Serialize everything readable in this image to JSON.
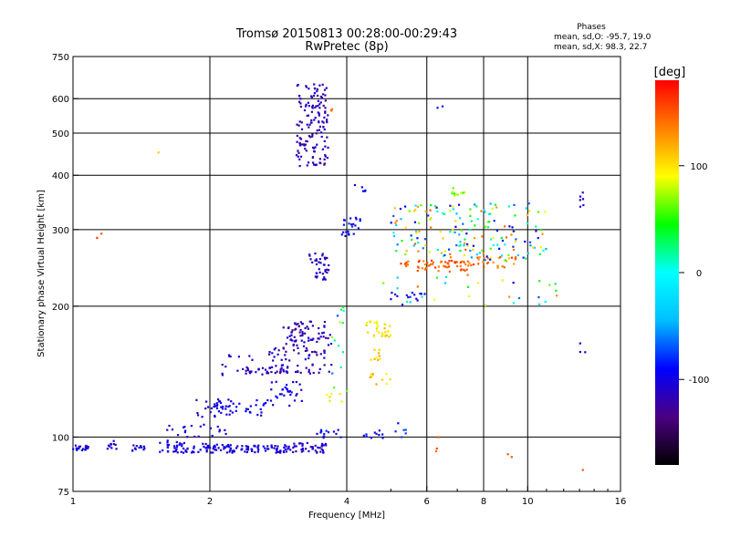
{
  "chart_data": {
    "type": "scatter",
    "title": "Tromsø 20150813 00:28:00-00:29:43",
    "subtitle": "RwPretec (8p)",
    "xlabel": "Frequency [MHz]",
    "ylabel": "Stationary phase Virtual Height [km]",
    "x_scale": "log",
    "y_scale": "log",
    "xlim": [
      1,
      16
    ],
    "ylim": [
      75,
      750
    ],
    "x_ticks": [
      1,
      2,
      4,
      6,
      8,
      10,
      16
    ],
    "y_ticks": [
      75,
      100,
      200,
      300,
      400,
      500,
      600,
      750
    ],
    "x_gridlines": [
      2,
      4,
      6,
      8,
      10
    ],
    "y_gridlines": [
      100,
      200,
      300,
      400,
      500,
      600
    ],
    "grid": true,
    "phases": {
      "header": "Phases",
      "line_o": "mean, sd,O:  -95.7, 19.0",
      "line_x": "mean, sd,X:  98.3, 22.7"
    },
    "colorbar": {
      "label": "[deg]",
      "range": [
        -180,
        180
      ],
      "ticks": [
        100,
        0,
        -100
      ],
      "colors": [
        "#000000",
        "#4b0082",
        "#0000ff",
        "#00bfff",
        "#00ffff",
        "#00ff00",
        "#ffff00",
        "#ff8000",
        "#ff0000"
      ]
    },
    "clusters": [
      {
        "x": [
          1.0,
          1.08
        ],
        "y": [
          93,
          96
        ],
        "n": 22,
        "phase": [
          -110,
          -95
        ]
      },
      {
        "x": [
          1.15,
          1.25
        ],
        "y": [
          93,
          98
        ],
        "n": 10,
        "phase": [
          -115,
          -95
        ]
      },
      {
        "x": [
          1.35,
          1.45
        ],
        "y": [
          92,
          96
        ],
        "n": 12,
        "phase": [
          -115,
          -95
        ]
      },
      {
        "x": [
          1.55,
          2.2
        ],
        "y": [
          92,
          97
        ],
        "n": 70,
        "phase": [
          -115,
          -90
        ]
      },
      {
        "x": [
          2.2,
          3.0
        ],
        "y": [
          92,
          96
        ],
        "n": 70,
        "phase": [
          -115,
          -90
        ]
      },
      {
        "x": [
          3.0,
          3.6
        ],
        "y": [
          92,
          97
        ],
        "n": 40,
        "phase": [
          -130,
          -95
        ]
      },
      {
        "x": [
          1.55,
          1.85
        ],
        "y": [
          97,
          108
        ],
        "n": 14,
        "phase": [
          -115,
          -95
        ]
      },
      {
        "x": [
          1.85,
          2.2
        ],
        "y": [
          100,
          125
        ],
        "n": 28,
        "phase": [
          -115,
          -95
        ]
      },
      {
        "x": [
          2.05,
          2.7
        ],
        "y": [
          112,
          122
        ],
        "n": 40,
        "phase": [
          -110,
          -90
        ]
      },
      {
        "x": [
          2.7,
          3.2
        ],
        "y": [
          118,
          135
        ],
        "n": 30,
        "phase": [
          -110,
          -90
        ]
      },
      {
        "x": [
          2.4,
          3.0
        ],
        "y": [
          139,
          145
        ],
        "n": 35,
        "phase": [
          -130,
          -100
        ]
      },
      {
        "x": [
          2.1,
          2.5
        ],
        "y": [
          138,
          155
        ],
        "n": 15,
        "phase": [
          -120,
          -95
        ]
      },
      {
        "x": [
          2.7,
          3.0
        ],
        "y": [
          145,
          165
        ],
        "n": 20,
        "phase": [
          -130,
          -100
        ]
      },
      {
        "x": [
          3.0,
          3.7
        ],
        "y": [
          140,
          185
        ],
        "n": 80,
        "phase": [
          -135,
          -100
        ]
      },
      {
        "x": [
          2.9,
          3.4
        ],
        "y": [
          160,
          185
        ],
        "n": 25,
        "phase": [
          -130,
          -100
        ]
      },
      {
        "x": [
          3.4,
          3.65
        ],
        "y": [
          230,
          260
        ],
        "n": 28,
        "phase": [
          -125,
          -100
        ]
      },
      {
        "x": [
          3.3,
          3.55
        ],
        "y": [
          250,
          265
        ],
        "n": 10,
        "phase": [
          -120,
          -100
        ]
      },
      {
        "x": [
          3.1,
          3.65
        ],
        "y": [
          420,
          650
        ],
        "n": 140,
        "phase": [
          -130,
          -100
        ]
      },
      {
        "x": [
          3.6,
          4.0
        ],
        "y": [
          120,
          135
        ],
        "n": 8,
        "phase": [
          60,
          110
        ]
      },
      {
        "x": [
          3.7,
          4.0
        ],
        "y": [
          140,
          200
        ],
        "n": 12,
        "phase": [
          -100,
          80
        ]
      },
      {
        "x": [
          3.9,
          4.3
        ],
        "y": [
          290,
          320
        ],
        "n": 22,
        "phase": [
          -110,
          -80
        ]
      },
      {
        "x": [
          4.4,
          5.0
        ],
        "y": [
          170,
          185
        ],
        "n": 30,
        "phase": [
          80,
          120
        ]
      },
      {
        "x": [
          4.5,
          4.8
        ],
        "y": [
          150,
          160
        ],
        "n": 10,
        "phase": [
          80,
          120
        ]
      },
      {
        "x": [
          4.5,
          5.0
        ],
        "y": [
          130,
          140
        ],
        "n": 10,
        "phase": [
          90,
          130
        ]
      },
      {
        "x": [
          3.4,
          3.9
        ],
        "y": [
          99,
          104
        ],
        "n": 14,
        "phase": [
          -110,
          -80
        ]
      },
      {
        "x": [
          4.3,
          4.8
        ],
        "y": [
          99,
          104
        ],
        "n": 10,
        "phase": [
          -110,
          -80
        ]
      },
      {
        "x": [
          5.1,
          5.4
        ],
        "y": [
          100,
          108
        ],
        "n": 6,
        "phase": [
          -100,
          -70
        ]
      },
      {
        "x": [
          4.7,
          6.0
        ],
        "y": [
          205,
          215
        ],
        "n": 14,
        "phase": [
          -110,
          -80
        ]
      },
      {
        "x": [
          5.2,
          7.5
        ],
        "y": [
          240,
          255
        ],
        "n": 60,
        "phase": [
          130,
          165
        ]
      },
      {
        "x": [
          7.5,
          9.5
        ],
        "y": [
          245,
          260
        ],
        "n": 25,
        "phase": [
          120,
          160
        ]
      },
      {
        "x": [
          5.0,
          11.0
        ],
        "y": [
          255,
          345
        ],
        "n": 180,
        "phase": [
          -110,
          150
        ]
      },
      {
        "x": [
          6.8,
          7.3
        ],
        "y": [
          355,
          375
        ],
        "n": 10,
        "phase": [
          40,
          80
        ]
      },
      {
        "x": [
          4.8,
          12.0
        ],
        "y": [
          200,
          240
        ],
        "n": 30,
        "phase": [
          -110,
          150
        ]
      },
      {
        "x": [
          13.0,
          13.3
        ],
        "y": [
          330,
          380
        ],
        "n": 6,
        "phase": [
          -115,
          -100
        ]
      },
      {
        "x": [
          13.0,
          13.4
        ],
        "y": [
          140,
          165
        ],
        "n": 3,
        "phase": [
          -115,
          -100
        ]
      },
      {
        "x": [
          1.12,
          1.18
        ],
        "y": [
          275,
          310
        ],
        "n": 2,
        "phase": [
          150,
          160
        ]
      },
      {
        "x": [
          1.5,
          1.55
        ],
        "y": [
          450,
          455
        ],
        "n": 1,
        "phase": [
          110,
          110
        ]
      },
      {
        "x": [
          6.2,
          6.4
        ],
        "y": [
          92,
          100
        ],
        "n": 3,
        "phase": [
          140,
          160
        ]
      },
      {
        "x": [
          9.0,
          9.3
        ],
        "y": [
          90,
          96
        ],
        "n": 2,
        "phase": [
          150,
          160
        ]
      },
      {
        "x": [
          13.0,
          13.3
        ],
        "y": [
          84,
          86
        ],
        "n": 1,
        "phase": [
          150,
          150
        ]
      },
      {
        "x": [
          4.0,
          4.4
        ],
        "y": [
          355,
          380
        ],
        "n": 5,
        "phase": [
          -110,
          -80
        ]
      },
      {
        "x": [
          6.3,
          6.5
        ],
        "y": [
          560,
          580
        ],
        "n": 2,
        "phase": [
          -100,
          -80
        ]
      },
      {
        "x": [
          3.65,
          3.75
        ],
        "y": [
          560,
          580
        ],
        "n": 3,
        "phase": [
          130,
          150
        ]
      }
    ]
  }
}
